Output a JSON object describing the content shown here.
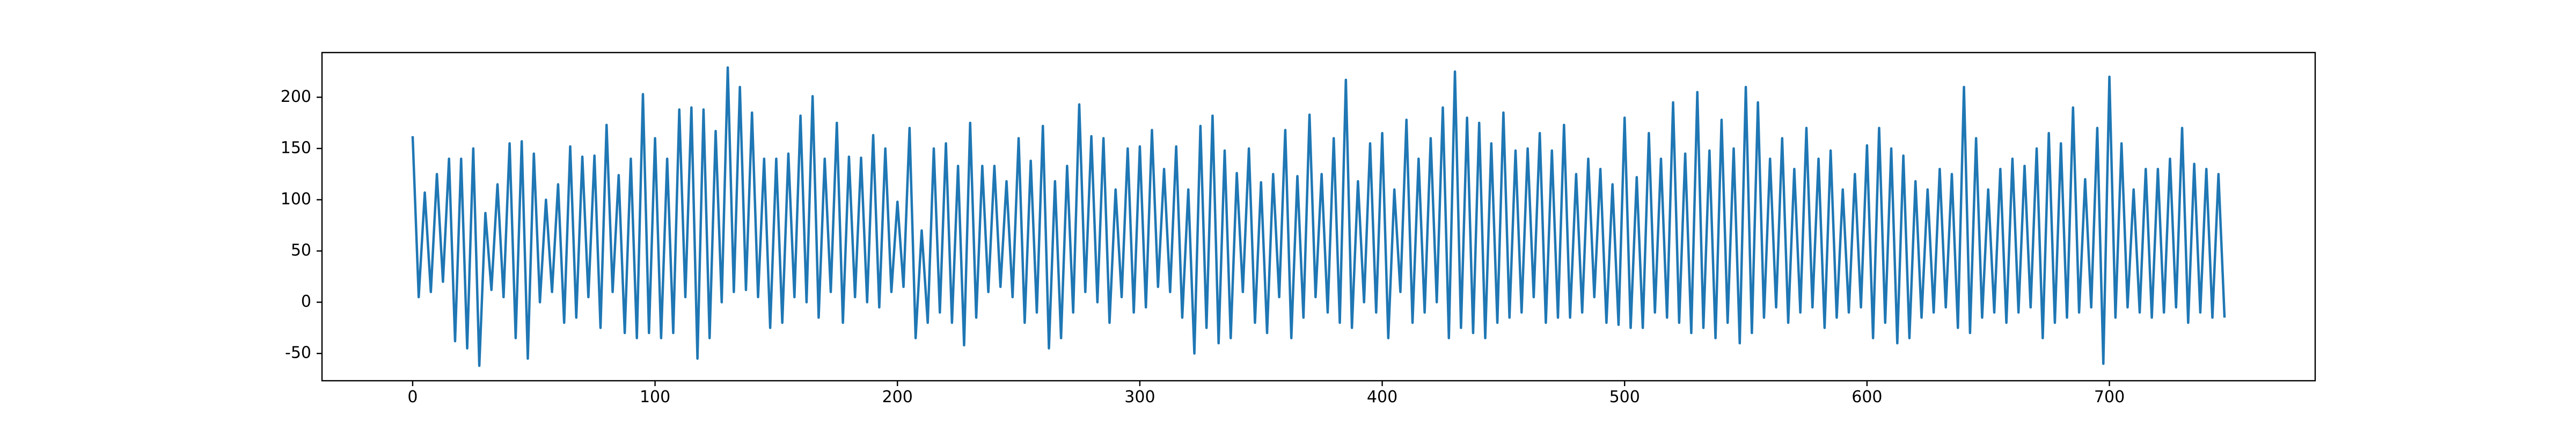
{
  "chart_data": {
    "type": "line",
    "color": "#1f77b4",
    "x": [
      0,
      2.5,
      5,
      7.5,
      10,
      12.5,
      15,
      17.5,
      20,
      22.5,
      25,
      27.5,
      30,
      32.5,
      35,
      37.5,
      40,
      42.5,
      45,
      47.5,
      50,
      52.5,
      55,
      57.5,
      60,
      62.5,
      65,
      67.5,
      70,
      72.5,
      75,
      77.5,
      80,
      82.5,
      85,
      87.5,
      90,
      92.5,
      95,
      97.5,
      100,
      102.5,
      105,
      107.5,
      110,
      112.5,
      115,
      117.5,
      120,
      122.5,
      125,
      127.5,
      130,
      132.5,
      135,
      137.5,
      140,
      142.5,
      145,
      147.5,
      150,
      152.5,
      155,
      157.5,
      160,
      162.5,
      165,
      167.5,
      170,
      172.5,
      175,
      177.5,
      180,
      182.5,
      185,
      187.5,
      190,
      192.5,
      195,
      197.5,
      200,
      202.5,
      205,
      207.5,
      210,
      212.5,
      215,
      217.5,
      220,
      222.5,
      225,
      227.5,
      230,
      232.5,
      235,
      237.5,
      240,
      242.5,
      245,
      247.5,
      250,
      252.5,
      255,
      257.5,
      260,
      262.5,
      265,
      267.5,
      270,
      272.5,
      275,
      277.5,
      280,
      282.5,
      285,
      287.5,
      290,
      292.5,
      295,
      297.5,
      300,
      302.5,
      305,
      307.5,
      310,
      312.5,
      315,
      317.5,
      320,
      322.5,
      325,
      327.5,
      330,
      332.5,
      335,
      337.5,
      340,
      342.5,
      345,
      347.5,
      350,
      352.5,
      355,
      357.5,
      360,
      362.5,
      365,
      367.5,
      370,
      372.5,
      375,
      377.5,
      380,
      382.5,
      385,
      387.5,
      390,
      392.5,
      395,
      397.5,
      400,
      402.5,
      405,
      407.5,
      410,
      412.5,
      415,
      417.5,
      420,
      422.5,
      425,
      427.5,
      430,
      432.5,
      435,
      437.5,
      440,
      442.5,
      445,
      447.5,
      450,
      452.5,
      455,
      457.5,
      460,
      462.5,
      465,
      467.5,
      470,
      472.5,
      475,
      477.5,
      480,
      482.5,
      485,
      487.5,
      490,
      492.5,
      495,
      497.5,
      500,
      502.5,
      505,
      507.5,
      510,
      512.5,
      515,
      517.5,
      520,
      522.5,
      525,
      527.5,
      530,
      532.5,
      535,
      537.5,
      540,
      542.5,
      545,
      547.5,
      550,
      552.5,
      555,
      557.5,
      560,
      562.5,
      565,
      567.5,
      570,
      572.5,
      575,
      577.5,
      580,
      582.5,
      585,
      587.5,
      590,
      592.5,
      595,
      597.5,
      600,
      602.5,
      605,
      607.5,
      610,
      612.5,
      615,
      617.5,
      620,
      622.5,
      625,
      627.5,
      630,
      632.5,
      635,
      637.5,
      640,
      642.5,
      645,
      647.5,
      650,
      652.5,
      655,
      657.5,
      660,
      662.5,
      665,
      667.5,
      670,
      672.5,
      675,
      677.5,
      680,
      682.5,
      685,
      687.5,
      690,
      692.5,
      695,
      697.5,
      700,
      702.5,
      705,
      707.5,
      710,
      712.5,
      715,
      717.5,
      720,
      722.5,
      725,
      727.5,
      730,
      732.5,
      735,
      737.5,
      740,
      742.5,
      745,
      747.5
    ],
    "values": [
      162,
      5,
      107,
      10,
      125,
      20,
      140,
      -38,
      140,
      -45,
      150,
      -62,
      87,
      12,
      115,
      5,
      155,
      -35,
      157,
      -55,
      145,
      0,
      100,
      10,
      115,
      -20,
      152,
      -15,
      142,
      5,
      143,
      -25,
      173,
      10,
      124,
      -30,
      140,
      -35,
      203,
      -30,
      160,
      -35,
      140,
      -30,
      188,
      5,
      190,
      -55,
      188,
      -35,
      167,
      0,
      229,
      10,
      210,
      12,
      185,
      5,
      140,
      -25,
      140,
      -20,
      145,
      5,
      182,
      0,
      201,
      -15,
      140,
      10,
      175,
      -20,
      142,
      5,
      141,
      0,
      163,
      -5,
      150,
      10,
      98,
      15,
      170,
      -35,
      70,
      -20,
      150,
      -10,
      155,
      -20,
      133,
      -42,
      175,
      -15,
      133,
      10,
      133,
      15,
      118,
      5,
      160,
      -20,
      138,
      -10,
      172,
      -45,
      118,
      -35,
      133,
      -10,
      193,
      10,
      162,
      0,
      160,
      -20,
      110,
      5,
      150,
      -10,
      152,
      -5,
      168,
      15,
      130,
      10,
      152,
      -15,
      110,
      -50,
      172,
      -25,
      182,
      -40,
      148,
      -35,
      126,
      10,
      150,
      -20,
      117,
      -30,
      125,
      5,
      168,
      -35,
      123,
      -15,
      183,
      5,
      125,
      -10,
      160,
      -20,
      217,
      -25,
      118,
      0,
      155,
      -10,
      165,
      -35,
      110,
      10,
      178,
      -20,
      140,
      -10,
      160,
      0,
      190,
      -35,
      225,
      -25,
      180,
      -30,
      175,
      -35,
      155,
      -20,
      185,
      -15,
      148,
      -10,
      150,
      5,
      165,
      -20,
      148,
      -15,
      173,
      -15,
      125,
      -10,
      140,
      5,
      130,
      -20,
      115,
      -22,
      180,
      -25,
      122,
      -25,
      165,
      -10,
      140,
      -15,
      195,
      -20,
      145,
      -30,
      205,
      -25,
      148,
      -35,
      178,
      -20,
      150,
      -40,
      210,
      -30,
      195,
      -15,
      140,
      -5,
      160,
      -20,
      130,
      -10,
      170,
      -5,
      140,
      -25,
      148,
      -15,
      110,
      -10,
      125,
      -5,
      153,
      -35,
      170,
      -20,
      150,
      -40,
      143,
      -35,
      118,
      -15,
      110,
      -10,
      130,
      -5,
      125,
      -25,
      210,
      -30,
      160,
      -15,
      110,
      -10,
      130,
      -20,
      140,
      -10,
      133,
      -5,
      150,
      -35,
      165,
      -20,
      155,
      -15,
      190,
      -10,
      120,
      -5,
      170,
      -60,
      220,
      -15,
      155,
      -5,
      110,
      -10,
      130,
      -15,
      130,
      -10,
      140,
      -5,
      170,
      -20,
      135,
      -10,
      130,
      -15,
      125,
      -15
    ],
    "xlim": [
      -37.4,
      784.9
    ],
    "xticks": [
      0,
      100,
      200,
      300,
      400,
      500,
      600,
      700
    ],
    "ylim": [
      -76.6,
      243.6
    ],
    "yticks": [
      -50,
      0,
      50,
      100,
      150,
      200
    ]
  }
}
